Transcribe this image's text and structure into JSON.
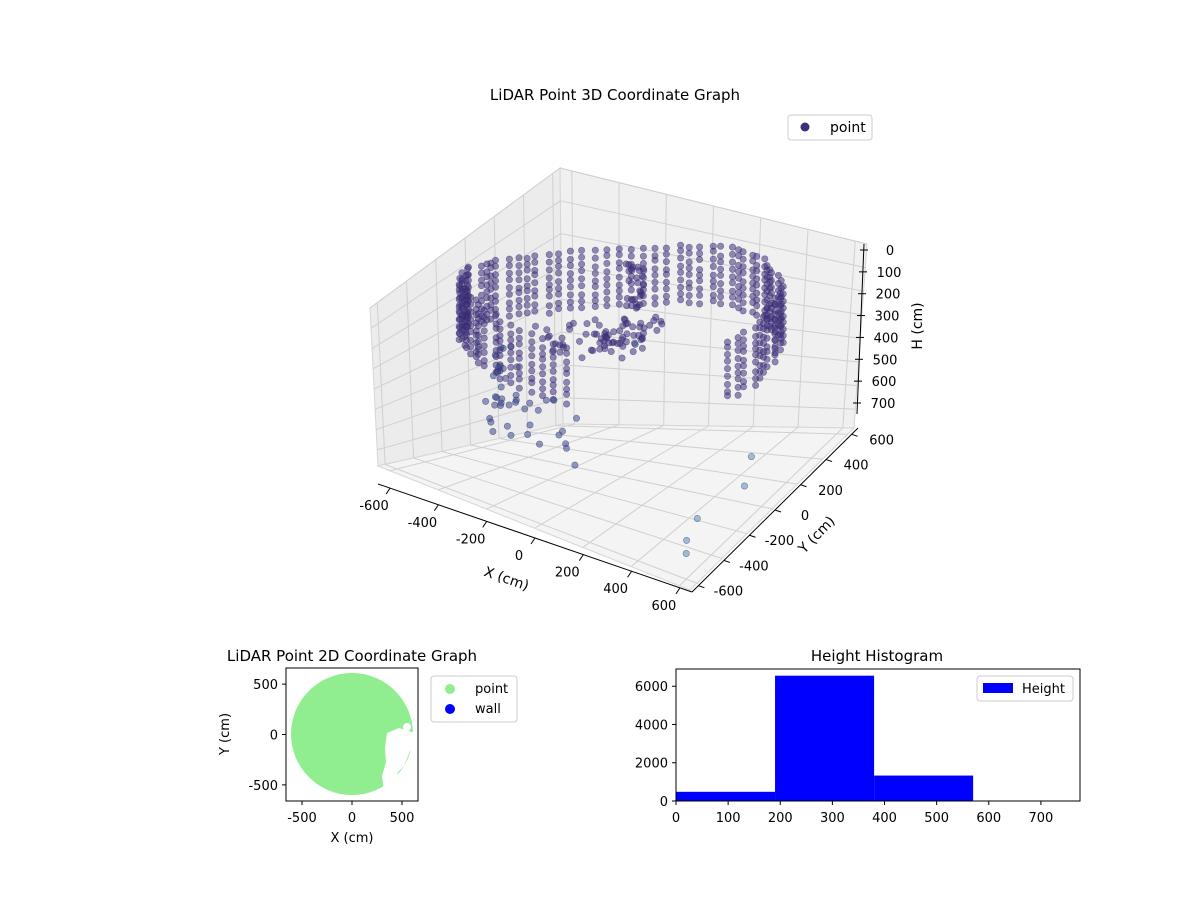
{
  "chart_data": [
    {
      "type": "scatter3d",
      "title": "LiDAR Point 3D Coordinate Graph",
      "xlabel": "X (cm)",
      "ylabel": "Y (cm)",
      "zlabel": "H (cm)",
      "x_ticks": [
        -600,
        -400,
        -200,
        0,
        200,
        400,
        600
      ],
      "y_ticks": [
        -600,
        -400,
        -200,
        0,
        200,
        400,
        600
      ],
      "z_ticks": [
        0,
        100,
        200,
        300,
        400,
        500,
        600,
        700
      ],
      "xlim": [
        -650,
        650
      ],
      "ylim": [
        -650,
        650
      ],
      "zlim": [
        0,
        780
      ],
      "z_inverted": true,
      "grid": true,
      "legend": {
        "placement": "top-right",
        "entries": [
          {
            "label": "point",
            "color": "#3b2f7a"
          }
        ]
      },
      "series": [
        {
          "kind": "ring",
          "radius": 600,
          "h_range": [
            200,
            380
          ],
          "angle_gap_deg": [
            -80,
            -20
          ]
        },
        {
          "kind": "outliers",
          "points": [
            [
              470,
              160,
              700
            ],
            [
              560,
              -60,
              700
            ],
            [
              520,
              -360,
              700
            ],
            [
              560,
              -520,
              700
            ],
            [
              600,
              -600,
              700
            ]
          ]
        }
      ]
    },
    {
      "type": "scatter",
      "title": "LiDAR Point 2D Coordinate Graph",
      "xlabel": "X (cm)",
      "ylabel": "Y (cm)",
      "x_ticks": [
        -500,
        0,
        500
      ],
      "y_ticks": [
        -500,
        0,
        500
      ],
      "xlim": [
        -660,
        660
      ],
      "ylim": [
        -660,
        660
      ],
      "legend": {
        "placement": "outside-right",
        "entries": [
          {
            "label": "point",
            "color": "#90ee90"
          },
          {
            "label": "wall",
            "color": "#0000ff"
          }
        ]
      },
      "series": [
        {
          "name": "point",
          "shape": "disc",
          "radius": 610
        }
      ]
    },
    {
      "type": "bar",
      "title": "Height Histogram",
      "xlim": [
        0,
        775
      ],
      "ylim": [
        0,
        6900
      ],
      "x_ticks": [
        0,
        100,
        200,
        300,
        400,
        500,
        600,
        700
      ],
      "y_ticks": [
        0,
        2000,
        4000,
        6000
      ],
      "bin_edges": [
        0,
        190,
        380,
        570,
        760
      ],
      "values": [
        480,
        6550,
        1330,
        0
      ],
      "color": "#0000ff",
      "legend": {
        "placement": "top-right",
        "entries": [
          {
            "label": "Height",
            "color": "#0000ff"
          }
        ]
      }
    }
  ]
}
